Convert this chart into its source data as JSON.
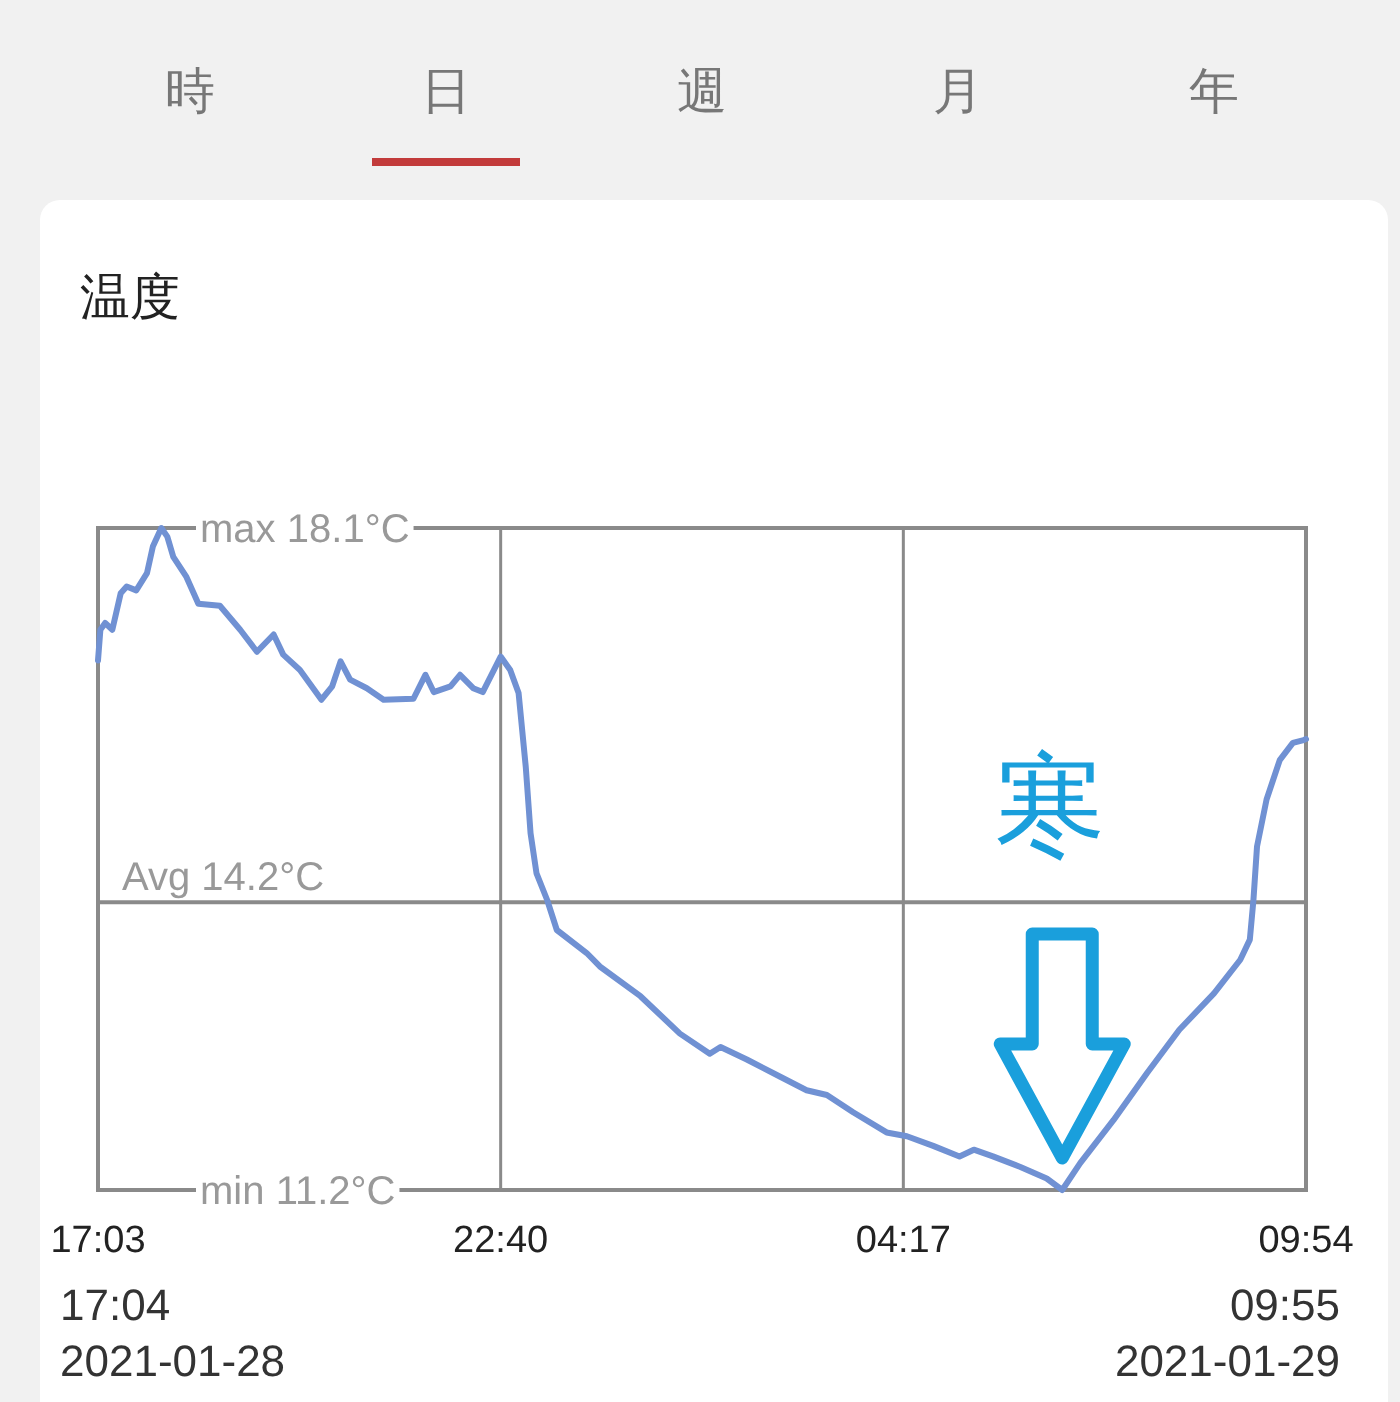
{
  "chart_data": {
    "type": "line",
    "title": "温度",
    "x": [
      "2021-01-28T17:03",
      "2021-01-28T17:05",
      "2021-01-28T17:09",
      "2021-01-28T17:15",
      "2021-01-28T17:22",
      "2021-01-28T17:27",
      "2021-01-28T17:35",
      "2021-01-28T17:44",
      "2021-01-28T17:49",
      "2021-01-28T17:56",
      "2021-01-28T18:01",
      "2021-01-28T18:06",
      "2021-01-28T18:17",
      "2021-01-28T18:27",
      "2021-01-28T18:45",
      "2021-01-28T19:02",
      "2021-01-28T19:16",
      "2021-01-28T19:30",
      "2021-01-28T19:38",
      "2021-01-28T19:52",
      "2021-01-28T20:10",
      "2021-01-28T20:19",
      "2021-01-28T20:26",
      "2021-01-28T20:34",
      "2021-01-28T20:48",
      "2021-01-28T21:02",
      "2021-01-28T21:27",
      "2021-01-28T21:37",
      "2021-01-28T21:44",
      "2021-01-28T21:58",
      "2021-01-28T22:06",
      "2021-01-28T22:17",
      "2021-01-28T22:25",
      "2021-01-28T22:40",
      "2021-01-28T22:48",
      "2021-01-28T22:55",
      "2021-01-28T23:01",
      "2021-01-28T23:05",
      "2021-01-28T23:10",
      "2021-01-28T23:19",
      "2021-01-28T23:27",
      "2021-01-28T23:52",
      "2021-01-29T00:03",
      "2021-01-29T00:37",
      "2021-01-29T01:10",
      "2021-01-29T01:35",
      "2021-01-29T01:44",
      "2021-01-29T02:06",
      "2021-01-29T02:34",
      "2021-01-29T02:56",
      "2021-01-29T03:13",
      "2021-01-29T03:35",
      "2021-01-29T04:03",
      "2021-01-29T04:20",
      "2021-01-29T04:42",
      "2021-01-29T05:04",
      "2021-01-29T05:16",
      "2021-01-29T05:32",
      "2021-01-29T05:55",
      "2021-01-29T06:17",
      "2021-01-29T06:30",
      "2021-01-29T06:45",
      "2021-01-29T07:13",
      "2021-01-29T07:41",
      "2021-01-29T08:08",
      "2021-01-29T08:37",
      "2021-01-29T08:59",
      "2021-01-29T09:07",
      "2021-01-29T09:10",
      "2021-01-29T09:13",
      "2021-01-29T09:21",
      "2021-01-29T09:32",
      "2021-01-29T09:43",
      "2021-01-29T09:52",
      "2021-01-29T09:54"
    ],
    "series": [
      {
        "color": "#7091d3",
        "values": [
          16.72,
          17.04,
          17.11,
          17.04,
          17.42,
          17.49,
          17.45,
          17.63,
          17.91,
          18.1,
          18.01,
          17.8,
          17.59,
          17.31,
          17.29,
          17.04,
          16.81,
          16.99,
          16.78,
          16.62,
          16.31,
          16.45,
          16.71,
          16.52,
          16.43,
          16.31,
          16.32,
          16.57,
          16.39,
          16.45,
          16.57,
          16.43,
          16.39,
          16.76,
          16.62,
          16.38,
          15.61,
          14.92,
          14.5,
          14.22,
          13.91,
          13.67,
          13.53,
          13.22,
          12.83,
          12.62,
          12.69,
          12.56,
          12.38,
          12.24,
          12.19,
          12.01,
          11.8,
          11.76,
          11.66,
          11.55,
          11.62,
          11.55,
          11.44,
          11.32,
          11.2,
          11.48,
          11.93,
          12.42,
          12.87,
          13.25,
          13.6,
          13.81,
          14.22,
          14.78,
          15.27,
          15.68,
          15.86,
          15.89,
          15.9
        ]
      }
    ],
    "xlim": [
      "2021-01-28T17:03",
      "2021-01-29T09:54"
    ],
    "xticks": [
      {
        "value": "2021-01-28T17:03",
        "label": "17:03"
      },
      {
        "value": "2021-01-28T22:40",
        "label": "22:40"
      },
      {
        "value": "2021-01-29T04:17",
        "label": "04:17"
      },
      {
        "value": "2021-01-29T09:54",
        "label": "09:54"
      }
    ],
    "ylim": [
      11.2,
      18.1
    ],
    "yticks": [
      {
        "value": 18.1,
        "label": "18.1°C"
      },
      {
        "value": 11.2,
        "label": "11.2°C"
      }
    ],
    "ref_lines": [
      {
        "axis": "y",
        "value": 14.2,
        "label": "Avg 14.2°C",
        "color": "#8a8a8a"
      }
    ],
    "grid": "x",
    "annotations": [
      "時",
      "日",
      "週",
      "月",
      "年",
      "max",
      "min",
      {
        "text": "寒",
        "x": "2021-01-29T06:30",
        "y": 11.2
      },
      "17:04",
      "2021-01-28",
      "09:55",
      "2021-01-29"
    ]
  }
}
